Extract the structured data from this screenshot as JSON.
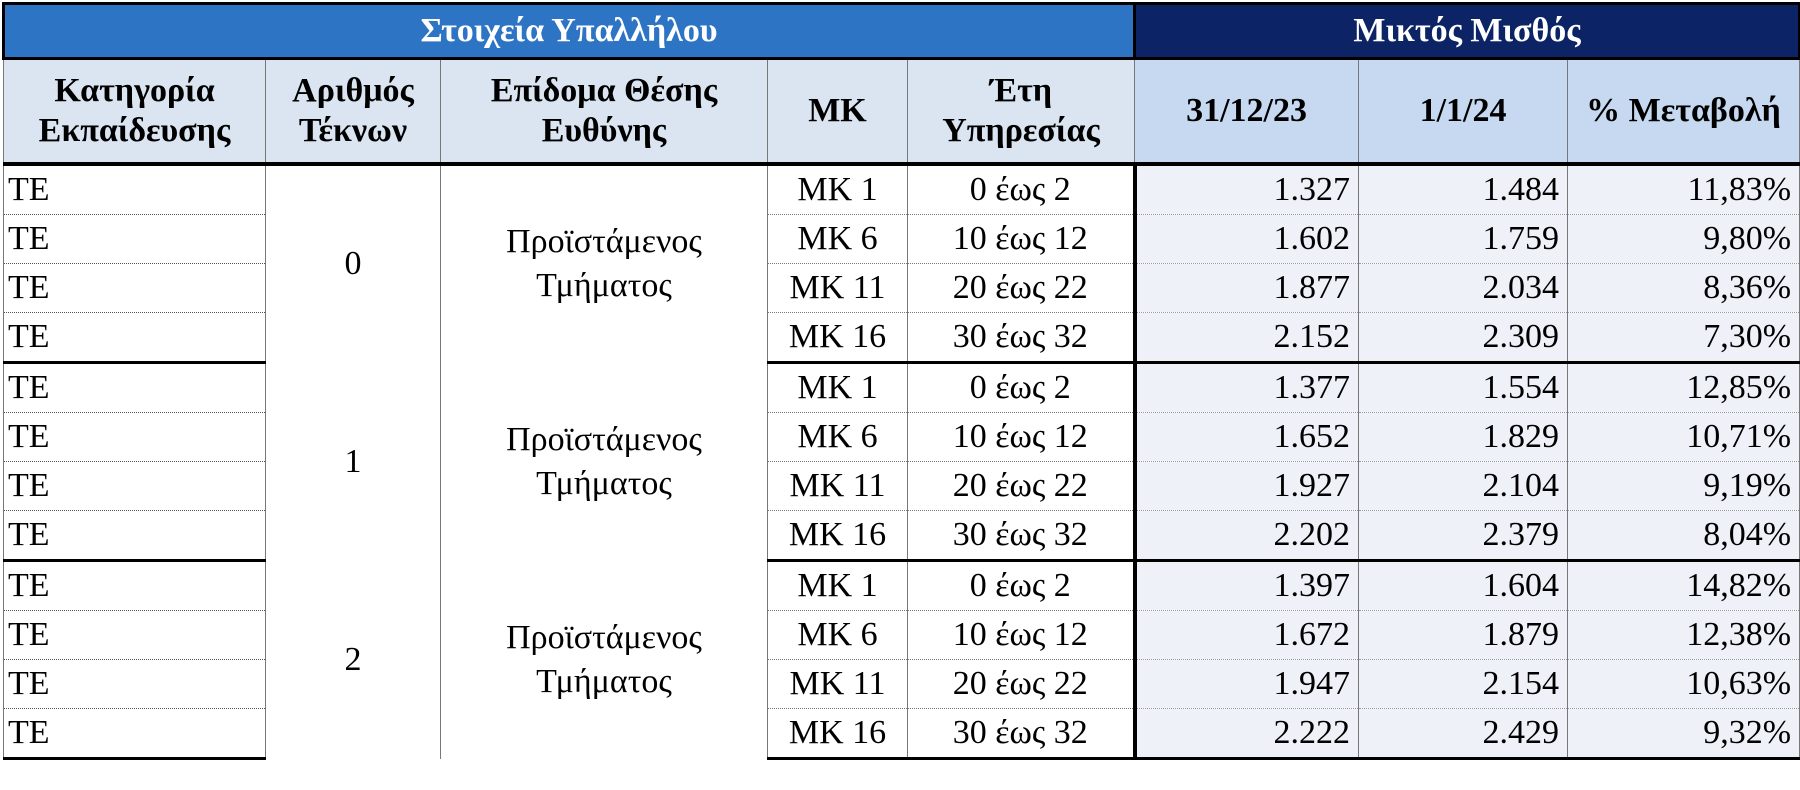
{
  "table": {
    "group_headers": [
      "Στοιχεία Υπαλλήλου",
      "Μικτός Μισθός"
    ],
    "columns": [
      "Κατηγορία Εκπαίδευσης",
      "Αριθμός Τέκνων",
      "Επίδομα Θέσης Ευθύνης",
      "ΜΚ",
      "Έτη Υπηρεσίας",
      "31/12/23",
      "1/1/24",
      "% Μεταβολή"
    ],
    "groups": [
      {
        "children": "0",
        "position": "Προϊστάμενος Τμήματος",
        "rows": [
          [
            "ΤΕ",
            "ΜΚ 1",
            "0 έως 2",
            "1.327",
            "1.484",
            "11,83%"
          ],
          [
            "ΤΕ",
            "ΜΚ 6",
            "10 έως 12",
            "1.602",
            "1.759",
            "9,80%"
          ],
          [
            "ΤΕ",
            "ΜΚ 11",
            "20 έως 22",
            "1.877",
            "2.034",
            "8,36%"
          ],
          [
            "ΤΕ",
            "ΜΚ 16",
            "30 έως 32",
            "2.152",
            "2.309",
            "7,30%"
          ]
        ]
      },
      {
        "children": "1",
        "position": "Προϊστάμενος Τμήματος",
        "rows": [
          [
            "ΤΕ",
            "ΜΚ 1",
            "0 έως 2",
            "1.377",
            "1.554",
            "12,85%"
          ],
          [
            "ΤΕ",
            "ΜΚ 6",
            "10 έως 12",
            "1.652",
            "1.829",
            "10,71%"
          ],
          [
            "ΤΕ",
            "ΜΚ 11",
            "20 έως 22",
            "1.927",
            "2.104",
            "9,19%"
          ],
          [
            "ΤΕ",
            "ΜΚ 16",
            "30 έως 32",
            "2.202",
            "2.379",
            "8,04%"
          ]
        ]
      },
      {
        "children": "2",
        "position": "Προϊστάμενος Τμήματος",
        "rows": [
          [
            "ΤΕ",
            "ΜΚ 1",
            "0 έως 2",
            "1.397",
            "1.604",
            "14,82%"
          ],
          [
            "ΤΕ",
            "ΜΚ 6",
            "10 έως 12",
            "1.672",
            "1.879",
            "12,38%"
          ],
          [
            "ΤΕ",
            "ΜΚ 11",
            "20 έως 22",
            "1.947",
            "2.154",
            "10,63%"
          ],
          [
            "ΤΕ",
            "ΜΚ 16",
            "30 έως 32",
            "2.222",
            "2.429",
            "9,32%"
          ]
        ]
      }
    ]
  }
}
